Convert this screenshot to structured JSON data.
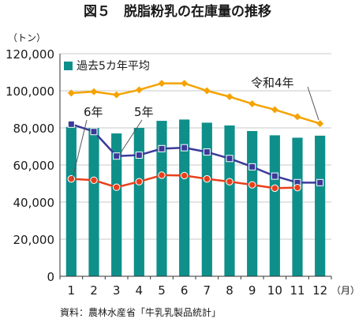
{
  "chart_data": {
    "type": "bar",
    "title": "図５　脱脂粉乳の在庫量の推移",
    "y_unit_label": "（トン）",
    "x_unit_label": "（月）",
    "source": "資料：農林水産省「牛乳乳製品統計」",
    "categories": [
      "1",
      "2",
      "3",
      "4",
      "5",
      "6",
      "7",
      "8",
      "9",
      "10",
      "11",
      "12"
    ],
    "ylim": [
      0,
      120000
    ],
    "yticks": [
      0,
      20000,
      40000,
      60000,
      80000,
      100000,
      120000
    ],
    "ytick_labels": [
      "0",
      "20,000",
      "40,000",
      "60,000",
      "80,000",
      "100,000",
      "120,000"
    ],
    "legend": {
      "label": "過去5カ年平均",
      "placement": "top-left"
    },
    "bars": {
      "name": "過去5カ年平均",
      "color": "#0e8f8a",
      "values": [
        80500,
        80000,
        77000,
        80000,
        83800,
        84500,
        82800,
        81300,
        78300,
        76000,
        74700,
        75800
      ]
    },
    "series": [
      {
        "name": "令和4年",
        "color": "#f5a300",
        "marker": "diamond",
        "values": [
          98800,
          99500,
          97800,
          100500,
          104000,
          104000,
          100000,
          96800,
          93000,
          89800,
          86000,
          82300
        ]
      },
      {
        "name": "6年",
        "color": "#3a3a9a",
        "marker": "square",
        "values": [
          82000,
          78000,
          64800,
          65300,
          68800,
          69300,
          67000,
          63500,
          59000,
          54000,
          50500,
          50500
        ]
      },
      {
        "name": "5年",
        "color": "#e8401c",
        "marker": "circle",
        "values": [
          52500,
          51800,
          48000,
          51000,
          54500,
          54300,
          52500,
          51000,
          49300,
          47500,
          47800,
          null
        ]
      }
    ],
    "annotations": [
      {
        "text": "令和4年",
        "series": "令和4年"
      },
      {
        "text": "6年",
        "series": "6年"
      },
      {
        "text": "5年",
        "series": "5年"
      }
    ]
  }
}
